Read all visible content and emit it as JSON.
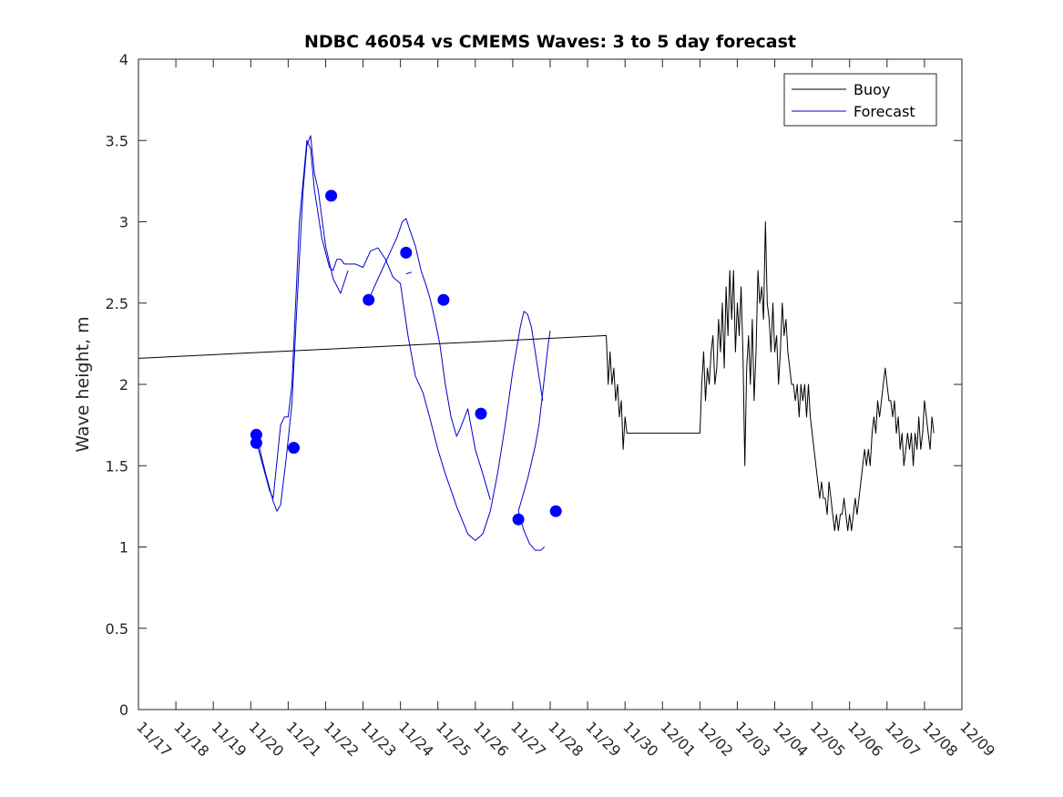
{
  "chart_data": {
    "type": "line",
    "title": "NDBC 46054 vs CMEMS Waves: 3 to 5 day forecast",
    "xlabel": "",
    "ylabel": "Wave height, m",
    "xlim": [
      0,
      22
    ],
    "ylim": [
      0,
      4
    ],
    "x_tick_labels": [
      "11/17",
      "11/18",
      "11/19",
      "11/20",
      "11/21",
      "11/22",
      "11/23",
      "11/24",
      "11/25",
      "11/26",
      "11/27",
      "11/28",
      "11/29",
      "11/30",
      "12/01",
      "12/02",
      "12/03",
      "12/04",
      "12/05",
      "12/06",
      "12/07",
      "12/08",
      "12/09"
    ],
    "y_ticks": [
      0,
      0.5,
      1,
      1.5,
      2,
      2.5,
      3,
      3.5,
      4
    ],
    "y_tick_labels": [
      "0",
      "0.5",
      "1",
      "1.5",
      "2",
      "2.5",
      "3",
      "3.5",
      "4"
    ],
    "legend": {
      "position": "top-right",
      "entries": [
        {
          "label": "Buoy",
          "color": "#000000"
        },
        {
          "label": "Forecast",
          "color": "#0000cc"
        }
      ]
    },
    "colors": {
      "buoy": "#000000",
      "forecast": "#0000cc",
      "markers": "#0000ff"
    },
    "series": [
      {
        "name": "Buoy",
        "segments": [
          [
            [
              0,
              2.16
            ],
            [
              12.45,
              2.3
            ],
            [
              12.5,
              2.3
            ],
            [
              12.55,
              2.0
            ],
            [
              12.6,
              2.2
            ],
            [
              12.65,
              2.0
            ],
            [
              12.7,
              2.1
            ],
            [
              12.75,
              1.9
            ],
            [
              12.8,
              2.0
            ],
            [
              12.85,
              1.8
            ],
            [
              12.9,
              1.9
            ],
            [
              12.95,
              1.6
            ],
            [
              13.0,
              1.8
            ],
            [
              13.05,
              1.7
            ],
            [
              13.1,
              1.7
            ],
            [
              15.0,
              1.7
            ],
            [
              15.05,
              2.0
            ],
            [
              15.1,
              2.2
            ],
            [
              15.15,
              1.9
            ],
            [
              15.2,
              2.1
            ],
            [
              15.25,
              2.0
            ],
            [
              15.3,
              2.2
            ],
            [
              15.35,
              2.3
            ],
            [
              15.4,
              2.0
            ],
            [
              15.45,
              2.1
            ],
            [
              15.5,
              2.4
            ],
            [
              15.55,
              2.2
            ],
            [
              15.6,
              2.5
            ],
            [
              15.65,
              2.1
            ],
            [
              15.7,
              2.6
            ],
            [
              15.75,
              2.3
            ],
            [
              15.8,
              2.7
            ],
            [
              15.85,
              2.4
            ],
            [
              15.9,
              2.7
            ],
            [
              15.95,
              2.2
            ],
            [
              16.0,
              2.5
            ],
            [
              16.05,
              2.3
            ],
            [
              16.1,
              2.6
            ],
            [
              16.15,
              2.2
            ],
            [
              16.2,
              1.5
            ],
            [
              16.25,
              2.1
            ],
            [
              16.3,
              2.3
            ],
            [
              16.35,
              2.0
            ],
            [
              16.4,
              2.4
            ],
            [
              16.45,
              1.9
            ],
            [
              16.5,
              2.2
            ],
            [
              16.55,
              2.7
            ],
            [
              16.6,
              2.5
            ],
            [
              16.65,
              2.6
            ],
            [
              16.7,
              2.4
            ],
            [
              16.75,
              3.0
            ],
            [
              16.8,
              2.5
            ],
            [
              16.85,
              2.4
            ],
            [
              16.9,
              2.2
            ],
            [
              16.95,
              2.5
            ],
            [
              17.0,
              2.2
            ],
            [
              17.05,
              2.3
            ],
            [
              17.1,
              2.0
            ],
            [
              17.15,
              2.2
            ],
            [
              17.2,
              2.5
            ],
            [
              17.25,
              2.3
            ],
            [
              17.3,
              2.4
            ],
            [
              17.35,
              2.2
            ],
            [
              17.4,
              2.1
            ],
            [
              17.45,
              2.0
            ],
            [
              17.5,
              2.0
            ],
            [
              17.55,
              1.9
            ],
            [
              17.6,
              2.0
            ],
            [
              17.65,
              1.8
            ],
            [
              17.7,
              2.0
            ],
            [
              17.75,
              1.9
            ],
            [
              17.8,
              2.0
            ],
            [
              17.85,
              1.8
            ],
            [
              17.9,
              2.0
            ],
            [
              17.95,
              1.8
            ],
            [
              18.0,
              1.7
            ],
            [
              18.05,
              1.6
            ],
            [
              18.1,
              1.5
            ],
            [
              18.15,
              1.4
            ],
            [
              18.2,
              1.3
            ],
            [
              18.25,
              1.4
            ],
            [
              18.3,
              1.3
            ],
            [
              18.35,
              1.3
            ],
            [
              18.4,
              1.2
            ],
            [
              18.45,
              1.4
            ],
            [
              18.5,
              1.3
            ],
            [
              18.55,
              1.2
            ],
            [
              18.6,
              1.1
            ],
            [
              18.65,
              1.2
            ],
            [
              18.7,
              1.1
            ],
            [
              18.75,
              1.2
            ],
            [
              18.8,
              1.2
            ],
            [
              18.85,
              1.3
            ],
            [
              18.9,
              1.2
            ],
            [
              18.95,
              1.1
            ],
            [
              19.0,
              1.2
            ],
            [
              19.05,
              1.1
            ],
            [
              19.1,
              1.2
            ],
            [
              19.15,
              1.3
            ],
            [
              19.2,
              1.2
            ],
            [
              19.25,
              1.3
            ],
            [
              19.3,
              1.4
            ],
            [
              19.35,
              1.5
            ],
            [
              19.4,
              1.6
            ],
            [
              19.45,
              1.5
            ],
            [
              19.5,
              1.6
            ],
            [
              19.55,
              1.5
            ],
            [
              19.6,
              1.7
            ],
            [
              19.65,
              1.8
            ],
            [
              19.7,
              1.7
            ],
            [
              19.75,
              1.9
            ],
            [
              19.8,
              1.8
            ],
            [
              19.85,
              1.9
            ],
            [
              19.9,
              2.0
            ],
            [
              19.95,
              2.1
            ],
            [
              20.0,
              2.0
            ],
            [
              20.05,
              1.9
            ],
            [
              20.1,
              1.9
            ],
            [
              20.15,
              1.8
            ],
            [
              20.2,
              1.9
            ],
            [
              20.25,
              1.7
            ],
            [
              20.3,
              1.8
            ],
            [
              20.35,
              1.6
            ],
            [
              20.4,
              1.7
            ],
            [
              20.45,
              1.5
            ],
            [
              20.5,
              1.6
            ],
            [
              20.55,
              1.7
            ],
            [
              20.6,
              1.6
            ],
            [
              20.65,
              1.7
            ],
            [
              20.7,
              1.5
            ],
            [
              20.75,
              1.7
            ],
            [
              20.8,
              1.6
            ],
            [
              20.85,
              1.8
            ],
            [
              20.9,
              1.6
            ],
            [
              20.95,
              1.7
            ],
            [
              21.0,
              1.9
            ],
            [
              21.05,
              1.8
            ],
            [
              21.1,
              1.7
            ],
            [
              21.15,
              1.6
            ],
            [
              21.2,
              1.8
            ],
            [
              21.25,
              1.7
            ]
          ]
        ]
      },
      {
        "name": "Forecast",
        "segments": [
          [
            [
              3.15,
              1.65
            ],
            [
              3.5,
              1.35
            ],
            [
              3.6,
              1.3
            ],
            [
              3.8,
              1.75
            ],
            [
              3.9,
              1.8
            ],
            [
              4.0,
              1.8
            ],
            [
              4.1,
              2.0
            ],
            [
              4.3,
              3.0
            ],
            [
              4.5,
              3.5
            ],
            [
              4.6,
              3.45
            ],
            [
              4.7,
              3.2
            ],
            [
              4.9,
              2.9
            ],
            [
              5.1,
              2.72
            ],
            [
              5.2,
              2.7
            ],
            [
              5.3,
              2.77
            ],
            [
              5.4,
              2.77
            ],
            [
              5.5,
              2.74
            ],
            [
              5.8,
              2.74
            ],
            [
              6.0,
              2.72
            ],
            [
              6.2,
              2.82
            ],
            [
              6.4,
              2.84
            ],
            [
              6.6,
              2.77
            ],
            [
              6.8,
              2.66
            ],
            [
              7.0,
              2.62
            ],
            [
              7.2,
              2.3
            ],
            [
              7.4,
              2.05
            ],
            [
              7.6,
              1.95
            ],
            [
              7.8,
              1.78
            ],
            [
              8.0,
              1.6
            ],
            [
              8.2,
              1.45
            ],
            [
              8.5,
              1.25
            ],
            [
              8.8,
              1.08
            ],
            [
              9.0,
              1.04
            ],
            [
              9.2,
              1.08
            ],
            [
              9.4,
              1.22
            ],
            [
              9.6,
              1.46
            ],
            [
              9.8,
              1.75
            ],
            [
              10.0,
              2.08
            ],
            [
              10.2,
              2.35
            ],
            [
              10.3,
              2.45
            ],
            [
              10.4,
              2.43
            ],
            [
              10.5,
              2.35
            ],
            [
              10.6,
              2.2
            ],
            [
              10.7,
              2.05
            ],
            [
              10.8,
              1.9
            ]
          ],
          [
            [
              3.15,
              1.69
            ],
            [
              3.4,
              1.45
            ],
            [
              3.6,
              1.28
            ],
            [
              3.7,
              1.22
            ],
            [
              3.8,
              1.26
            ],
            [
              3.95,
              1.55
            ],
            [
              4.1,
              1.88
            ],
            [
              4.25,
              2.55
            ],
            [
              4.4,
              3.2
            ],
            [
              4.5,
              3.47
            ],
            [
              4.6,
              3.53
            ],
            [
              4.7,
              3.3
            ],
            [
              4.8,
              3.2
            ],
            [
              5.0,
              2.85
            ],
            [
              5.2,
              2.65
            ],
            [
              5.4,
              2.56
            ],
            [
              5.6,
              2.7
            ]
          ],
          [
            [
              6.15,
              2.52
            ],
            [
              6.3,
              2.6
            ],
            [
              6.5,
              2.7
            ],
            [
              6.7,
              2.8
            ],
            [
              6.9,
              2.9
            ],
            [
              7.05,
              3.0
            ],
            [
              7.15,
              3.02
            ],
            [
              7.25,
              2.95
            ],
            [
              7.4,
              2.85
            ],
            [
              7.55,
              2.7
            ],
            [
              7.7,
              2.6
            ],
            [
              7.8,
              2.52
            ],
            [
              7.9,
              2.42
            ],
            [
              8.05,
              2.25
            ],
            [
              8.2,
              2.0
            ],
            [
              8.35,
              1.8
            ],
            [
              8.5,
              1.68
            ],
            [
              8.6,
              1.73
            ],
            [
              8.8,
              1.85
            ],
            [
              9.0,
              1.6
            ],
            [
              9.2,
              1.45
            ],
            [
              9.4,
              1.29
            ]
          ],
          [
            [
              7.15,
              2.68
            ],
            [
              7.3,
              2.69
            ]
          ],
          [
            [
              10.15,
              1.22
            ],
            [
              10.3,
              1.1
            ],
            [
              10.45,
              1.02
            ],
            [
              10.6,
              0.98
            ],
            [
              10.75,
              0.98
            ],
            [
              10.85,
              1.0
            ]
          ],
          [
            [
              10.15,
              1.22
            ],
            [
              10.4,
              1.42
            ],
            [
              10.6,
              1.62
            ],
            [
              10.7,
              1.75
            ],
            [
              10.8,
              1.95
            ],
            [
              10.95,
              2.25
            ],
            [
              11.0,
              2.33
            ]
          ]
        ]
      }
    ],
    "markers": [
      {
        "x": 3.15,
        "y": 1.69
      },
      {
        "x": 3.15,
        "y": 1.64
      },
      {
        "x": 4.15,
        "y": 1.61
      },
      {
        "x": 5.15,
        "y": 3.16
      },
      {
        "x": 6.15,
        "y": 2.52
      },
      {
        "x": 7.15,
        "y": 2.81
      },
      {
        "x": 8.15,
        "y": 2.52
      },
      {
        "x": 9.15,
        "y": 1.82
      },
      {
        "x": 10.15,
        "y": 1.17
      },
      {
        "x": 11.15,
        "y": 1.22
      }
    ]
  }
}
